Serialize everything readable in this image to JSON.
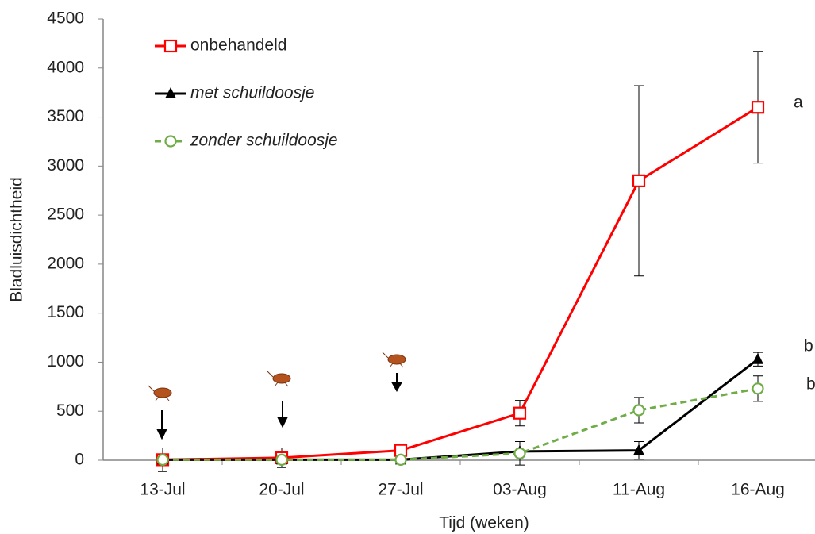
{
  "chart_data": {
    "type": "line",
    "x_label": "Tijd (weken)",
    "y_label": "Bladluisdichtheid",
    "categories": [
      "13-Jul",
      "20-Jul",
      "27-Jul",
      "03-Aug",
      "11-Aug",
      "16-Aug"
    ],
    "ylim": [
      0,
      4500
    ],
    "yticks": [
      0,
      500,
      1000,
      1500,
      2000,
      2500,
      3000,
      3500,
      4000,
      4500
    ],
    "grid": false,
    "legend": "upper left",
    "series": [
      {
        "name": "onbehandeld",
        "color": "#ff0000",
        "marker": "square",
        "dashed": false,
        "italic": false,
        "values": [
          5,
          25,
          100,
          480,
          2850,
          3600
        ],
        "errors": [
          120,
          100,
          20,
          130,
          970,
          570
        ]
      },
      {
        "name": "met schuildoosje",
        "color": "#000000",
        "marker": "triangle",
        "dashed": false,
        "italic": true,
        "values": [
          5,
          5,
          5,
          90,
          100,
          1030
        ],
        "errors": [
          0,
          0,
          0,
          0,
          90,
          70
        ]
      },
      {
        "name": "zonder schuildoosje",
        "color": "#70ad47",
        "marker": "circle",
        "dashed": true,
        "italic": true,
        "values": [
          5,
          5,
          5,
          70,
          510,
          730
        ],
        "errors": [
          0,
          0,
          0,
          120,
          130,
          130
        ]
      }
    ],
    "annotations": [
      "a",
      "b",
      "b"
    ]
  }
}
